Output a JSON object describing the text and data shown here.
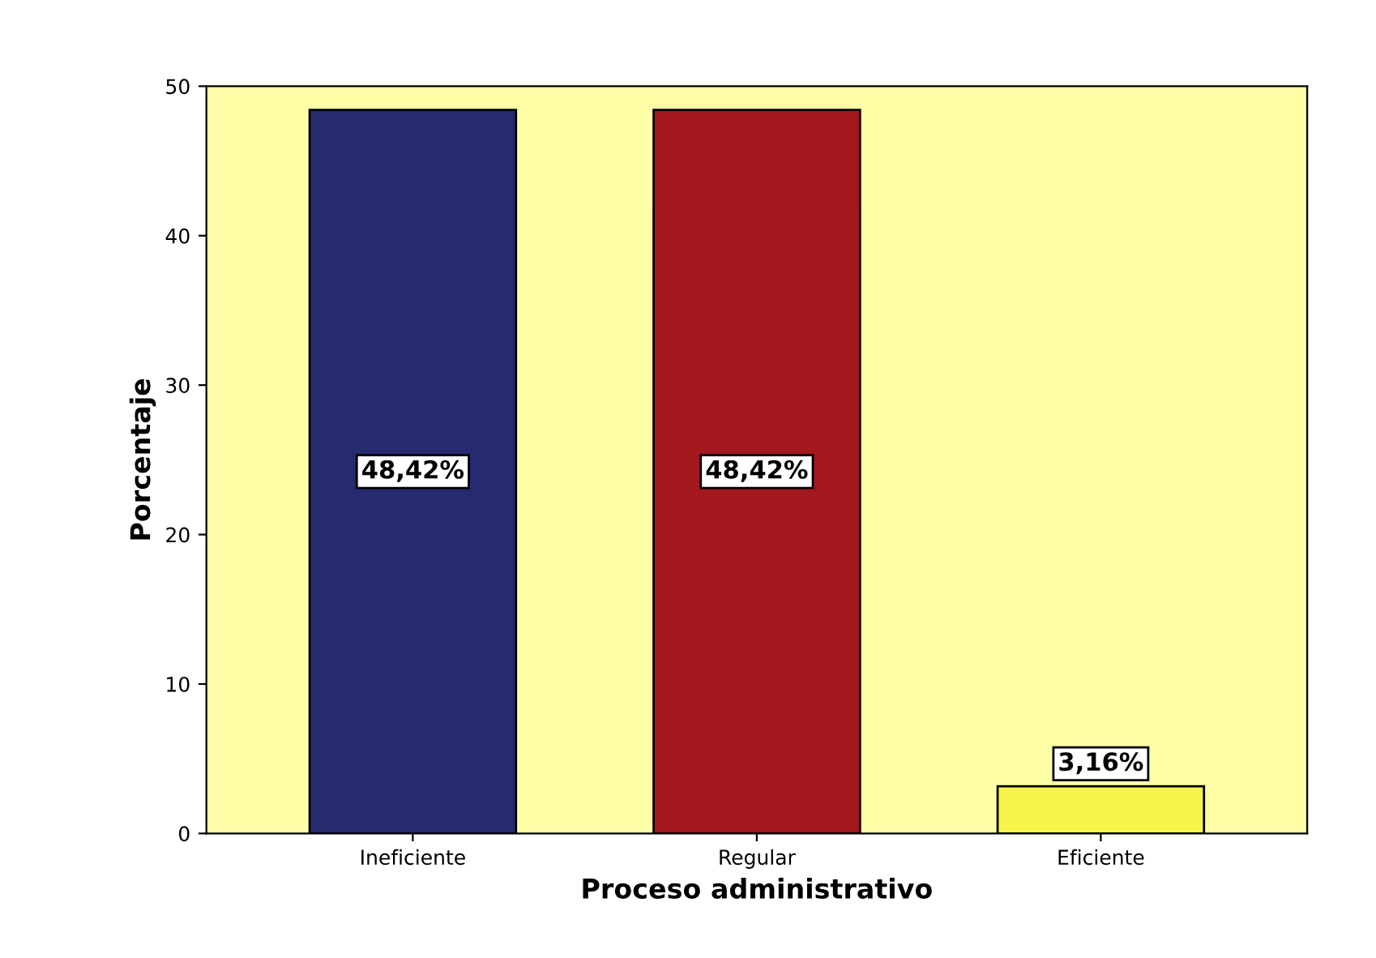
{
  "chart_data": {
    "type": "bar",
    "xlabel": "Proceso administrativo",
    "ylabel": "Porcentaje",
    "categories": [
      "Ineficiente",
      "Regular",
      "Eficiente"
    ],
    "values": [
      48.42,
      48.42,
      3.16
    ],
    "colors": [
      "#262a6e",
      "#a3191d",
      "#f7f54a"
    ],
    "value_labels": [
      "48,42%",
      "48,42%",
      "3,16%"
    ],
    "ylim": [
      0,
      50
    ],
    "yticks": [
      0,
      10,
      20,
      30,
      40,
      50
    ],
    "grid": false
  }
}
